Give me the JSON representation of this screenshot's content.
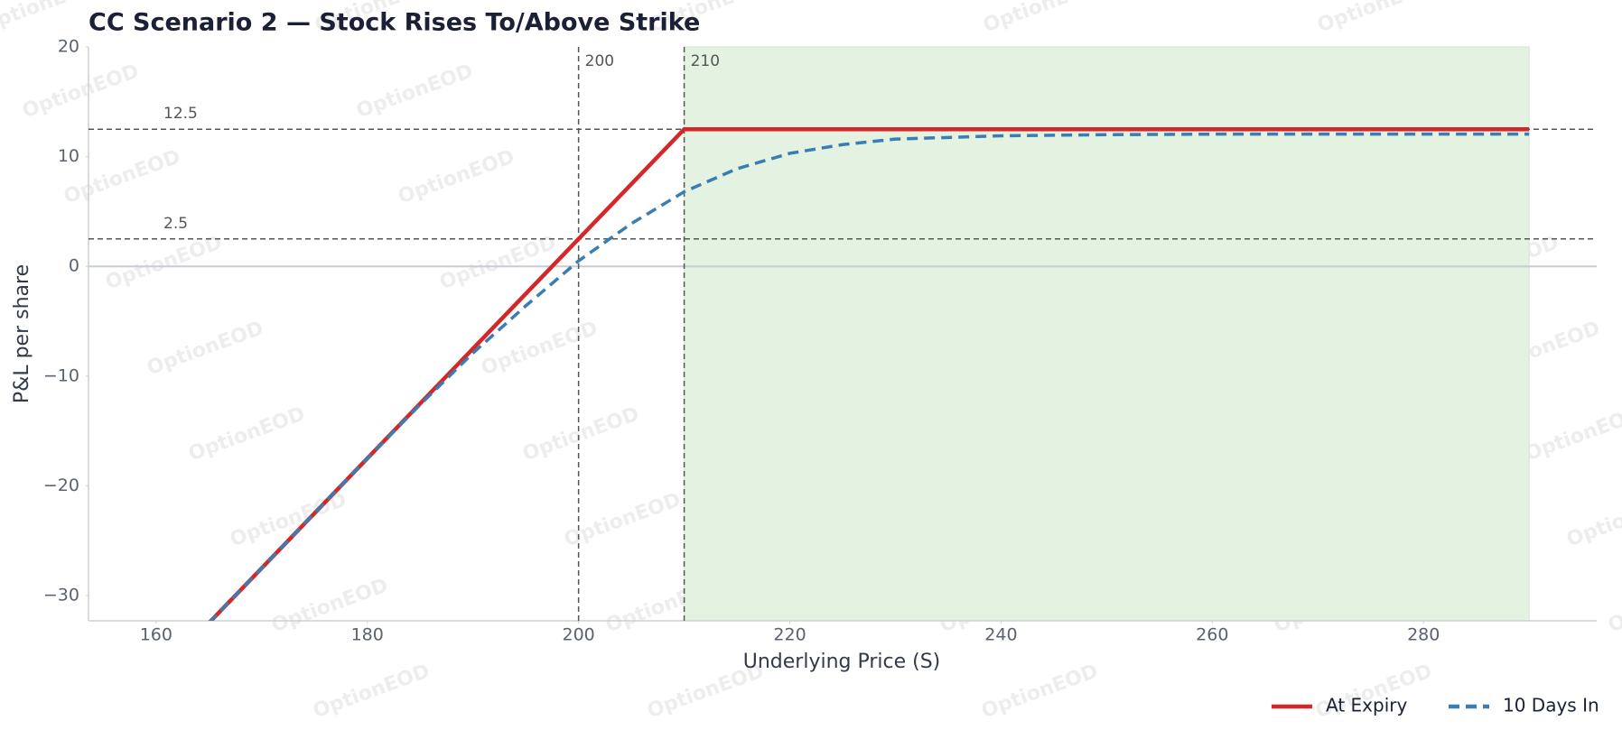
{
  "chart_data": {
    "type": "line",
    "title": "CC Scenario 2 — Stock Rises To/Above Strike",
    "xlabel": "Underlying Price (S)",
    "ylabel": "P&L per share",
    "watermark": "OptionEOD",
    "xlim": [
      153.6,
      296.4
    ],
    "ylim": [
      -32.3,
      20
    ],
    "xticks": [
      160,
      180,
      200,
      220,
      240,
      260,
      280
    ],
    "yticks": [
      {
        "value": -30,
        "label": "−30"
      },
      {
        "value": -20,
        "label": "−20"
      },
      {
        "value": -10,
        "label": "−10"
      },
      0,
      10,
      20
    ],
    "hlines": [
      12.5,
      2.5
    ],
    "vlines": [
      200,
      210
    ],
    "shade": {
      "x": [
        210,
        290
      ],
      "color": "#e3f2e1"
    },
    "zero_line": true,
    "legend": "lower right",
    "series": [
      {
        "name": "At Expiry",
        "color": "#d62728",
        "style": "solid",
        "x": [
          165,
          210,
          290
        ],
        "values": [
          -32.5,
          12.5,
          12.5
        ]
      },
      {
        "name": "10 Days In",
        "color": "#3a7db3",
        "style": "dashed",
        "x": [
          165,
          170,
          175,
          180,
          185,
          190,
          195,
          200,
          205,
          210,
          215,
          220,
          225,
          230,
          240,
          250,
          260,
          270,
          290
        ],
        "values": [
          -32.5,
          -27.5,
          -22.5,
          -17.5,
          -12.6,
          -7.9,
          -3.6,
          0.5,
          3.9,
          6.8,
          8.9,
          10.3,
          11.1,
          11.6,
          11.9,
          12.0,
          12.05,
          12.05,
          12.05
        ]
      }
    ]
  }
}
